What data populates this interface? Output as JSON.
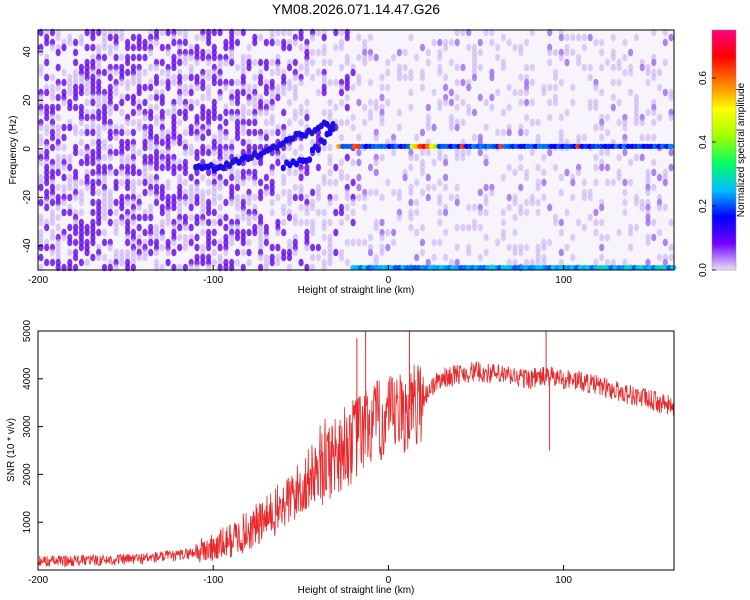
{
  "title": "YM08.2026.071.14.47.G26",
  "chart_data": [
    {
      "type": "heatmap",
      "panel": "spectrogram",
      "xlabel": "Height of straight line (km)",
      "ylabel": "Frequency (Hz)",
      "xlim": [
        -200,
        163
      ],
      "ylim": [
        -50,
        49
      ],
      "xticks": [
        -200,
        -100,
        0,
        100
      ],
      "yticks": [
        -40,
        -20,
        0,
        20,
        40
      ],
      "colorbar": {
        "label": "Normalized spectral amplitude",
        "range": [
          0.0,
          0.75
        ],
        "ticks": [
          0.0,
          0.2,
          0.4,
          0.6
        ],
        "colormap": [
          "#e8e0f8",
          "#7000ff",
          "#0000ff",
          "#00c0ff",
          "#00ff60",
          "#a0ff00",
          "#ffff00",
          "#ff8000",
          "#ff0000",
          "#ff0080"
        ]
      },
      "features": [
        {
          "name": "carrier_line",
          "freq_hz": 1,
          "x_start": -28,
          "x_end": 163,
          "amplitude": 0.15,
          "peak_amplitude": 0.7,
          "peak_x": 20
        },
        {
          "name": "edge_line",
          "freq_hz": -49,
          "x_start": -20,
          "x_end": 163,
          "amplitude": 0.2
        },
        {
          "name": "converging_trace",
          "points": [
            [
              -110,
              -9
            ],
            [
              -80,
              -4
            ],
            [
              -60,
              3
            ],
            [
              -40,
              9
            ],
            [
              -30,
              10
            ]
          ]
        },
        {
          "name": "diverging_trace",
          "points": [
            [
              -60,
              -7
            ],
            [
              -45,
              -3
            ],
            [
              -35,
              5
            ],
            [
              -30,
              10
            ]
          ]
        }
      ]
    },
    {
      "type": "line",
      "panel": "snr",
      "xlabel": "Height of straight line (km)",
      "ylabel": "SNR (10 * v/v)",
      "xlim": [
        -200,
        163
      ],
      "ylim": [
        0,
        5000
      ],
      "xticks": [
        -200,
        -100,
        0,
        100
      ],
      "yticks": [
        1000,
        2000,
        3000,
        4000,
        5000
      ],
      "color": "#e8282a",
      "envelope": {
        "x": [
          -200,
          -150,
          -120,
          -100,
          -90,
          -80,
          -70,
          -60,
          -50,
          -40,
          -30,
          -20,
          -10,
          0,
          10,
          20,
          25,
          30,
          40,
          50,
          60,
          70,
          80,
          90,
          100,
          110,
          120,
          130,
          140,
          150,
          163
        ],
        "y": [
          180,
          220,
          300,
          450,
          620,
          820,
          1050,
          1350,
          1700,
          2150,
          2450,
          2700,
          3050,
          3150,
          3300,
          3600,
          3850,
          4000,
          4100,
          4150,
          4100,
          4050,
          4000,
          4050,
          4000,
          3950,
          3850,
          3750,
          3650,
          3550,
          3400
        ]
      },
      "spikes": [
        {
          "x": -18,
          "y": 4850
        },
        {
          "x": -13,
          "y": 5000
        },
        {
          "x": 12,
          "y": 5000
        },
        {
          "x": 90,
          "y": 5000
        },
        {
          "x": 92,
          "y": 2500
        }
      ]
    }
  ]
}
